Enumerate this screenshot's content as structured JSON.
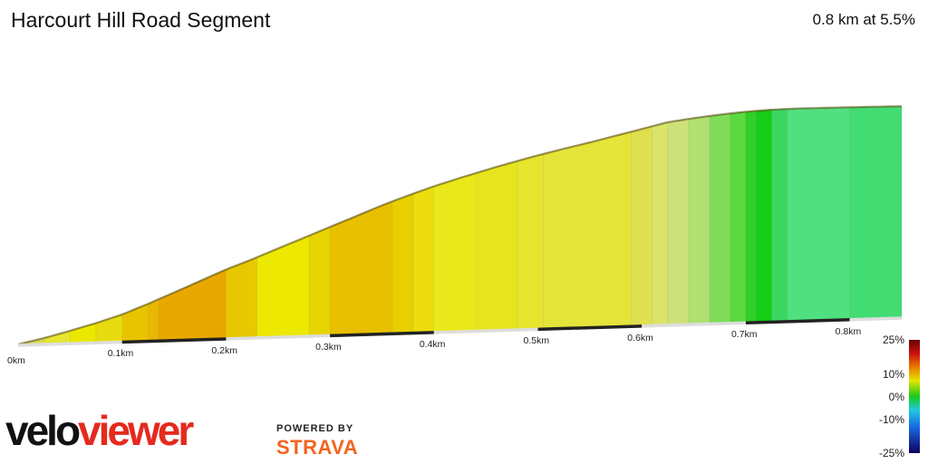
{
  "header": {
    "title": "Harcourt Hill Road Segment",
    "summary": "0.8 km at 5.5%"
  },
  "branding": {
    "velo": "velo",
    "viewer": "viewer",
    "powered_by": "POWERED BY",
    "strava": "STRAVA"
  },
  "colors": {
    "orange": "#e8a800",
    "yellow": "#e8e400",
    "pale_yellow": "#dce86a",
    "light_green": "#a8e070",
    "green": "#1ed21e",
    "mint": "#50e080"
  },
  "legend": {
    "labels": [
      "25%",
      "10%",
      "0%",
      "-10%",
      "-25%"
    ],
    "values": [
      25,
      10,
      0,
      -10,
      -25
    ]
  },
  "chart_data": {
    "type": "area",
    "title": "",
    "xlabel": "",
    "ylabel": "",
    "x_unit": "km",
    "x_ticks": [
      "0km",
      "0.1km",
      "0.2km",
      "0.3km",
      "0.4km",
      "0.5km",
      "0.6km",
      "0.7km",
      "0.8km"
    ],
    "x_tick_values": [
      0,
      0.1,
      0.2,
      0.3,
      0.4,
      0.5,
      0.6,
      0.7,
      0.8
    ],
    "xlim": [
      0,
      0.85
    ],
    "profile": {
      "x": [
        0,
        0.025,
        0.05,
        0.075,
        0.1,
        0.125,
        0.15,
        0.175,
        0.2,
        0.225,
        0.25,
        0.275,
        0.3,
        0.325,
        0.35,
        0.375,
        0.4,
        0.425,
        0.45,
        0.475,
        0.5,
        0.525,
        0.55,
        0.575,
        0.6,
        0.625,
        0.65,
        0.675,
        0.7,
        0.725,
        0.75,
        0.775,
        0.8,
        0.825,
        0.85
      ],
      "y": [
        0,
        0.026,
        0.057,
        0.09,
        0.127,
        0.174,
        0.224,
        0.275,
        0.326,
        0.37,
        0.418,
        0.465,
        0.513,
        0.56,
        0.608,
        0.651,
        0.691,
        0.727,
        0.761,
        0.793,
        0.823,
        0.851,
        0.877,
        0.905,
        0.933,
        0.962,
        0.977,
        0.99,
        1.0,
        1.006,
        1.008,
        1.007,
        1.006,
        1.005,
        1.003
      ]
    },
    "gradient_bands": [
      {
        "x0": 0.0,
        "x1": 0.025,
        "color": "#d8dc55"
      },
      {
        "x0": 0.025,
        "x1": 0.05,
        "color": "#e4e630"
      },
      {
        "x0": 0.05,
        "x1": 0.075,
        "color": "#eae800"
      },
      {
        "x0": 0.075,
        "x1": 0.1,
        "color": "#e8dc10"
      },
      {
        "x0": 0.1,
        "x1": 0.125,
        "color": "#e8c400"
      },
      {
        "x0": 0.125,
        "x1": 0.135,
        "color": "#e8b800"
      },
      {
        "x0": 0.135,
        "x1": 0.2,
        "color": "#e8a800"
      },
      {
        "x0": 0.2,
        "x1": 0.23,
        "color": "#e8c800"
      },
      {
        "x0": 0.23,
        "x1": 0.28,
        "color": "#ece800"
      },
      {
        "x0": 0.28,
        "x1": 0.3,
        "color": "#e8d400"
      },
      {
        "x0": 0.3,
        "x1": 0.36,
        "color": "#e8c000"
      },
      {
        "x0": 0.36,
        "x1": 0.38,
        "color": "#e8d000"
      },
      {
        "x0": 0.38,
        "x1": 0.4,
        "color": "#ecdc10"
      },
      {
        "x0": 0.4,
        "x1": 0.44,
        "color": "#eae81a"
      },
      {
        "x0": 0.44,
        "x1": 0.48,
        "color": "#e6e41e"
      },
      {
        "x0": 0.48,
        "x1": 0.505,
        "color": "#e6e42c"
      },
      {
        "x0": 0.505,
        "x1": 0.59,
        "color": "#e4e43a"
      },
      {
        "x0": 0.59,
        "x1": 0.61,
        "color": "#dee050"
      },
      {
        "x0": 0.61,
        "x1": 0.625,
        "color": "#dae46a"
      },
      {
        "x0": 0.625,
        "x1": 0.645,
        "color": "#cce278"
      },
      {
        "x0": 0.645,
        "x1": 0.665,
        "color": "#b0e070"
      },
      {
        "x0": 0.665,
        "x1": 0.685,
        "color": "#80dc58"
      },
      {
        "x0": 0.685,
        "x1": 0.7,
        "color": "#5cd840"
      },
      {
        "x0": 0.7,
        "x1": 0.71,
        "color": "#30d028"
      },
      {
        "x0": 0.71,
        "x1": 0.725,
        "color": "#16cc16"
      },
      {
        "x0": 0.725,
        "x1": 0.74,
        "color": "#3ad660"
      },
      {
        "x0": 0.74,
        "x1": 0.8,
        "color": "#50e080"
      },
      {
        "x0": 0.8,
        "x1": 0.85,
        "color": "#42dc72"
      }
    ]
  }
}
